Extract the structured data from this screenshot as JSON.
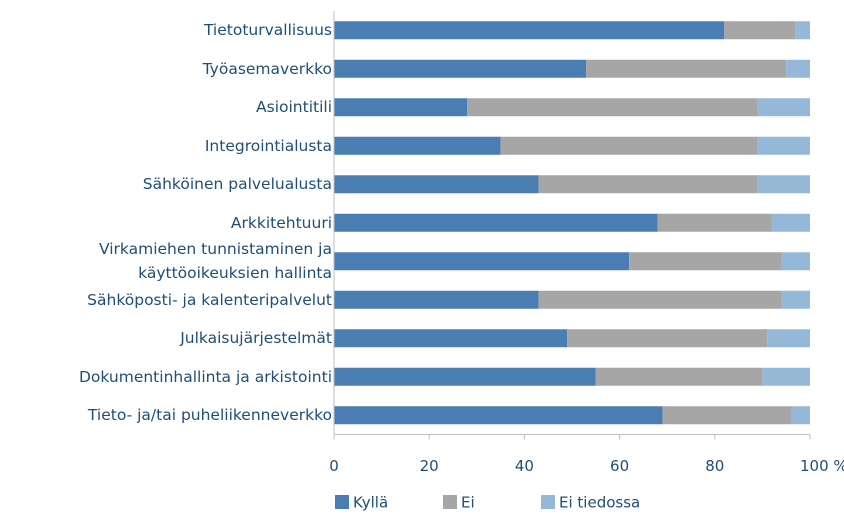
{
  "chart_data": {
    "type": "stacked_bar_horizontal",
    "categories": [
      "Tietoturvallisuus",
      "Työasemaverkko",
      "Asiointitili",
      "Integrointialusta",
      "Sähköinen palvelualusta",
      "Arkkitehtuuri",
      "Virkamiehen tunnistaminen ja käyttöoikeuksien hallinta",
      "Sähköposti- ja kalenteripalvelut",
      "Julkaisujärjestelmät",
      "Dokumentinhallinta ja arkistointi",
      "Tieto- ja/tai puheliikenneverkko"
    ],
    "series": [
      {
        "name": "Kyllä",
        "color": "#4a7eb3",
        "values": [
          82,
          53,
          28,
          35,
          43,
          68,
          62,
          43,
          49,
          55,
          69
        ]
      },
      {
        "name": "Ei",
        "color": "#a6a6a6",
        "values": [
          15,
          42,
          61,
          54,
          46,
          24,
          32,
          51,
          42,
          35,
          27
        ]
      },
      {
        "name": "Ei tiedossa",
        "color": "#95b8d9",
        "values": [
          3,
          5,
          11,
          11,
          11,
          8,
          6,
          6,
          9,
          10,
          4
        ]
      }
    ],
    "xlim": [
      0,
      100
    ],
    "xticks": [
      0,
      20,
      40,
      60,
      80,
      {
        "value": 100,
        "label": "100 %"
      }
    ],
    "legend": "bottom"
  }
}
